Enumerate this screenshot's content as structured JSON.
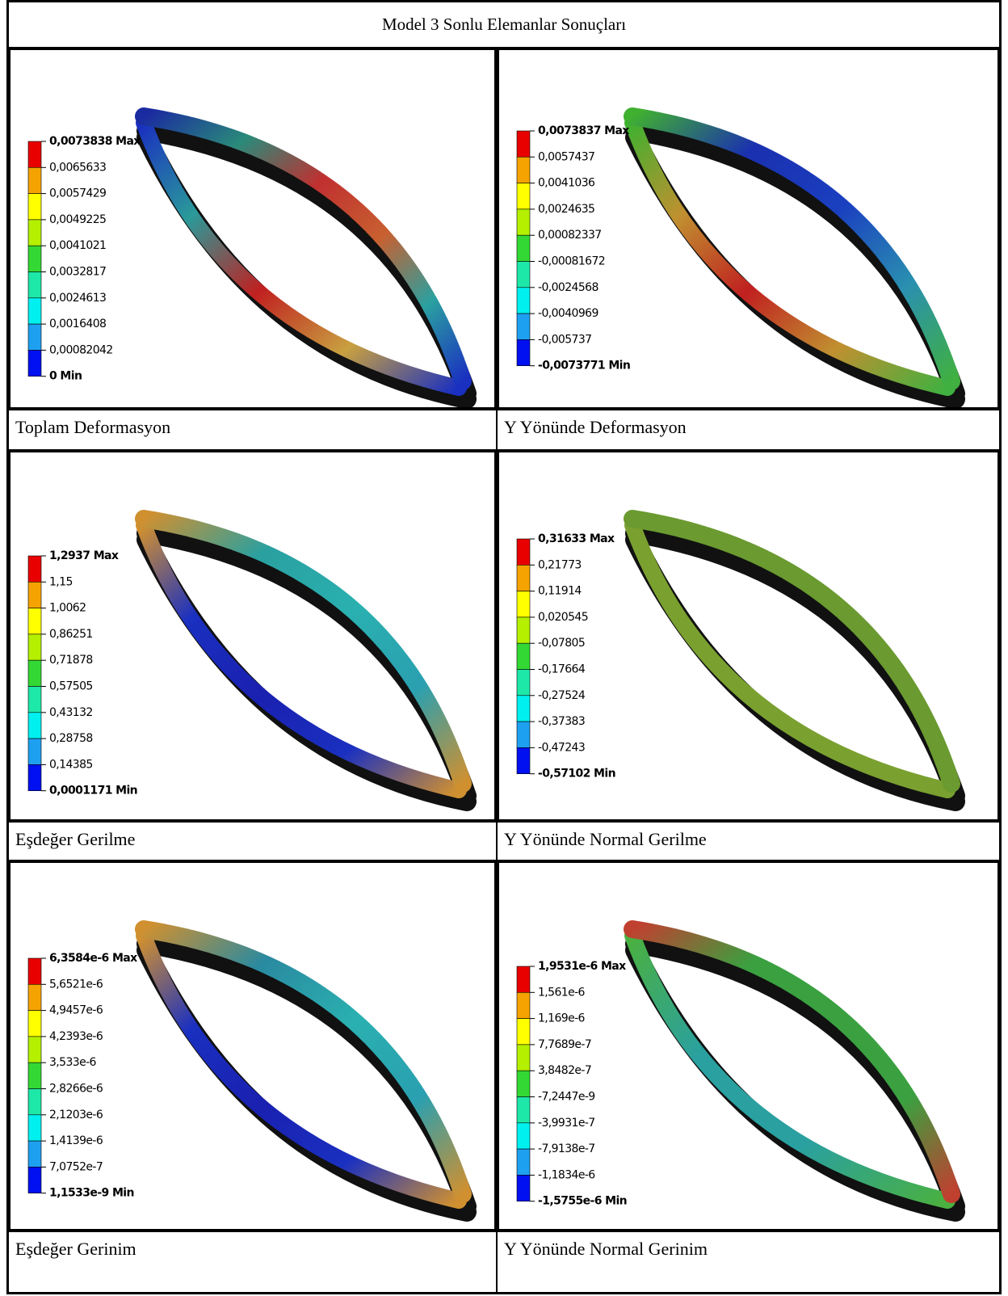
{
  "title": "Model 3 Sonlu Elemanlar Sonuçları",
  "panels": [
    {
      "caption": "Toplam Deformasyon",
      "legend": [
        "0,0073838 Max",
        "0,0065633",
        "0,0057429",
        "0,0049225",
        "0,0041021",
        "0,0032817",
        "0,0024613",
        "0,0016408",
        "0,00082042",
        "0 Min"
      ]
    },
    {
      "caption": "Y Yönünde Deformasyon",
      "legend": [
        "0,0073837 Max",
        "0,0057437",
        "0,0041036",
        "0,0024635",
        "0,00082337",
        "-0,00081672",
        "-0,0024568",
        "-0,0040969",
        "-0,005737",
        "-0,0073771 Min"
      ]
    },
    {
      "caption": "Eşdeğer Gerilme",
      "legend": [
        "1,2937 Max",
        "1,15",
        "1,0062",
        "0,86251",
        "0,71878",
        "0,57505",
        "0,43132",
        "0,28758",
        "0,14385",
        "0,0001171 Min"
      ]
    },
    {
      "caption": "Y Yönünde Normal Gerilme",
      "legend": [
        "0,31633 Max",
        "0,21773",
        "0,11914",
        "0,020545",
        "-0,07805",
        "-0,17664",
        "-0,27524",
        "-0,37383",
        "-0,47243",
        "-0,57102 Min"
      ]
    },
    {
      "caption": "Eşdeğer Gerinim",
      "legend": [
        "6,3584e-6 Max",
        "5,6521e-6",
        "4,9457e-6",
        "4,2393e-6",
        "3,533e-6",
        "2,8266e-6",
        "2,1203e-6",
        "1,4139e-6",
        "7,0752e-7",
        "1,1533e-9 Min"
      ]
    },
    {
      "caption": "Y Yönünde Normal Gerinim",
      "legend": [
        "1,9531e-6 Max",
        "1,561e-6",
        "1,169e-6",
        "7,7689e-7",
        "3,8482e-7",
        "-7,2447e-9",
        "-3,9931e-7",
        "-7,9138e-7",
        "-1,1834e-6",
        "-1,5755e-6 Min"
      ]
    }
  ]
}
